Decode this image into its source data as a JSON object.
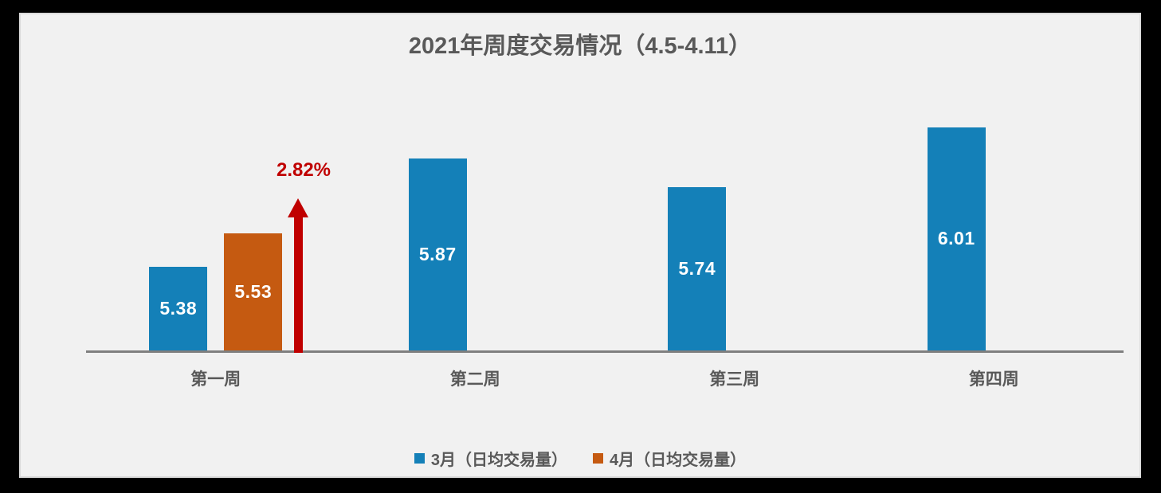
{
  "chart_data": {
    "type": "bar",
    "title": "2021年周度交易情况（4.5-4.11）",
    "categories": [
      "第一周",
      "第二周",
      "第三周",
      "第四周"
    ],
    "series": [
      {
        "name": "3月（日均交易量）",
        "color": "#1480B8",
        "values": [
          5.38,
          5.87,
          5.74,
          6.01
        ]
      },
      {
        "name": "4月（日均交易量）",
        "color": "#C55A11",
        "values": [
          5.53,
          null,
          null,
          null
        ]
      }
    ],
    "data_labels": true,
    "axis": {
      "y_min": 5.0,
      "y_max": 6.5,
      "x_axis_visible": true,
      "y_axis_visible": false,
      "gridlines": false
    },
    "legend_position": "bottom",
    "annotation": {
      "text": "2.82%",
      "type": "up-arrow",
      "color": "#C00000",
      "category": "第一周"
    }
  },
  "colors": {
    "background": "#F1F1F1",
    "outer_border": "#000000",
    "axis_gray": "#7F7F7F",
    "text_gray": "#595959",
    "march_blue": "#1480B8",
    "april_orange": "#C55A11",
    "annotation_red": "#C00000",
    "bar_label_white": "#FFFFFF"
  }
}
